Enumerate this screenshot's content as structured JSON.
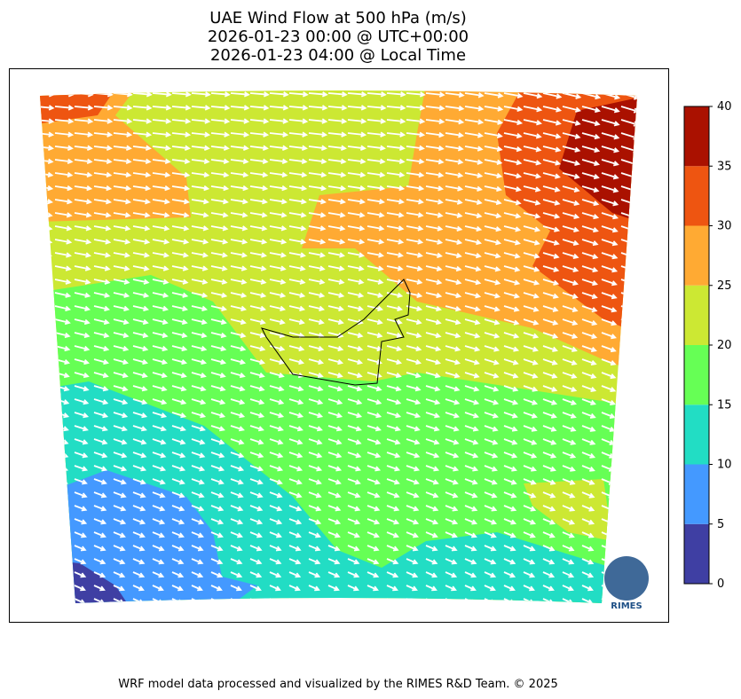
{
  "title": [
    "UAE Wind Flow at 500 hPa (m/s)",
    "2026-01-23 00:00 @ UTC+00:00",
    "2026-01-23 04:00 @ Local Time"
  ],
  "colorbar": {
    "lim": [
      0,
      40
    ],
    "ticks": [
      0,
      5,
      10,
      15,
      20,
      25,
      30,
      35,
      40
    ],
    "colors": [
      "#3f3fa3",
      "#4499ff",
      "#22ddc4",
      "#66ff55",
      "#cce833",
      "#ffaa33",
      "#ee5511",
      "#aa1100"
    ]
  },
  "logo": "RIMES",
  "footer": "WRF model data processed and visualized by the RIMES R&D Team. © 2025"
}
